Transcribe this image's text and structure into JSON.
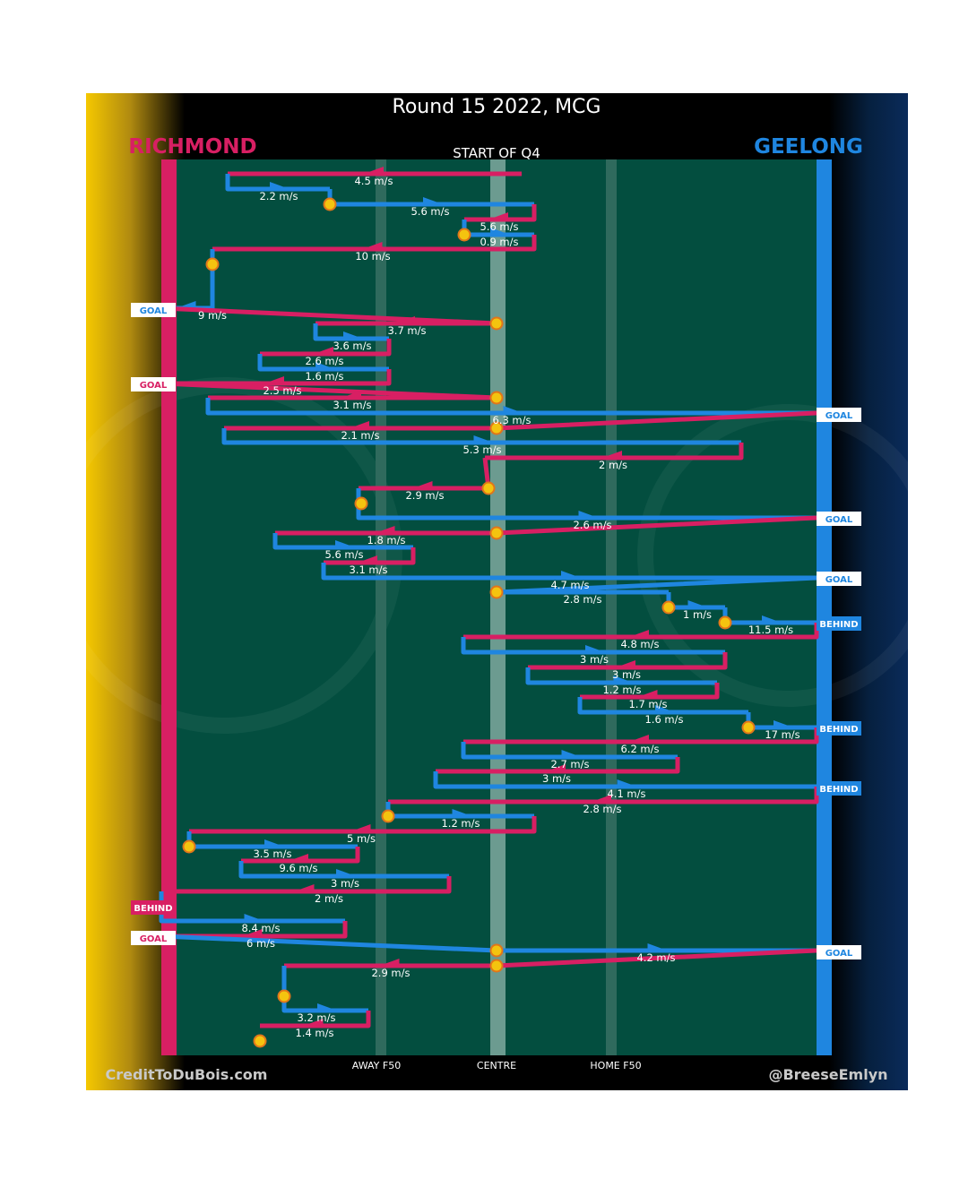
{
  "header": {
    "title": "Round 15 2022, MCG",
    "subtitle": "START OF Q4",
    "team_left": "RICHMOND",
    "team_right": "GEELONG"
  },
  "footer": {
    "credit_left": "CreditToDuBois.com",
    "credit_right": "@BreeseEmlyn"
  },
  "colors": {
    "richmond": "#d81f63",
    "geelong": "#1f86e0",
    "ground": "#034e3f",
    "ball": "#f4c40f"
  },
  "chart_data": {
    "type": "line",
    "title": "Round 15 2022, MCG",
    "subtitle": "START OF Q4",
    "x_axis": {
      "ticks": [
        "AWAY F50",
        "CENTRE",
        "HOME F50"
      ],
      "left_goal": "RICHMOND",
      "right_goal": "GEELONG"
    },
    "series": [
      {
        "team": "RICHMOND",
        "color": "#d81f63"
      },
      {
        "team": "GEELONG",
        "color": "#1f86e0"
      }
    ],
    "chains": [
      {
        "team": "R",
        "speed": "4.5 m/s"
      },
      {
        "team": "G",
        "speed": "2.2 m/s"
      },
      {
        "team": "G",
        "speed": "5.6 m/s"
      },
      {
        "team": "R",
        "speed": "5.6 m/s"
      },
      {
        "team": "G",
        "speed": "0.9 m/s"
      },
      {
        "team": "R",
        "speed": "10 m/s"
      },
      {
        "team": "G",
        "speed": "9 m/s",
        "result": "GOAL"
      },
      {
        "team": "R",
        "speed": "3.7 m/s"
      },
      {
        "team": "G",
        "speed": "3.6 m/s"
      },
      {
        "team": "R",
        "speed": "2.6 m/s"
      },
      {
        "team": "G",
        "speed": "1.6 m/s"
      },
      {
        "team": "R",
        "speed": "2.5 m/s",
        "result": "GOAL"
      },
      {
        "team": "R",
        "speed": "3.1 m/s"
      },
      {
        "team": "G",
        "speed": "6.3 m/s",
        "result": "GOAL"
      },
      {
        "team": "R",
        "speed": "2.1 m/s"
      },
      {
        "team": "G",
        "speed": "5.3 m/s"
      },
      {
        "team": "R",
        "speed": "2 m/s"
      },
      {
        "team": "R",
        "speed": "2.9 m/s"
      },
      {
        "team": "G",
        "speed": "2.6 m/s",
        "result": "GOAL"
      },
      {
        "team": "R",
        "speed": "1.8 m/s"
      },
      {
        "team": "G",
        "speed": "5.6 m/s"
      },
      {
        "team": "R",
        "speed": "3.1 m/s"
      },
      {
        "team": "G",
        "speed": "4.7 m/s",
        "result": "GOAL"
      },
      {
        "team": "G",
        "speed": "2.8 m/s"
      },
      {
        "team": "G",
        "speed": "1 m/s"
      },
      {
        "team": "G",
        "speed": "11.5 m/s",
        "result": "BEHIND"
      },
      {
        "team": "R",
        "speed": "4.8 m/s"
      },
      {
        "team": "G",
        "speed": "3 m/s"
      },
      {
        "team": "R",
        "speed": "3 m/s"
      },
      {
        "team": "G",
        "speed": "1.2 m/s"
      },
      {
        "team": "R",
        "speed": "1.7 m/s"
      },
      {
        "team": "G",
        "speed": "1.6 m/s"
      },
      {
        "team": "G",
        "speed": "17 m/s",
        "result": "BEHIND"
      },
      {
        "team": "R",
        "speed": "6.2 m/s"
      },
      {
        "team": "G",
        "speed": "2.7 m/s"
      },
      {
        "team": "R",
        "speed": "3 m/s"
      },
      {
        "team": "G",
        "speed": "4.1 m/s",
        "result": "BEHIND"
      },
      {
        "team": "R",
        "speed": "2.8 m/s"
      },
      {
        "team": "G",
        "speed": "1.2 m/s"
      },
      {
        "team": "R",
        "speed": "5 m/s"
      },
      {
        "team": "G",
        "speed": "3.5 m/s"
      },
      {
        "team": "R",
        "speed": "9.6 m/s"
      },
      {
        "team": "G",
        "speed": "3 m/s"
      },
      {
        "team": "R",
        "speed": "2 m/s",
        "result": "BEHIND"
      },
      {
        "team": "G",
        "speed": "8.4 m/s"
      },
      {
        "team": "R",
        "speed": "6 m/s",
        "result": "GOAL"
      },
      {
        "team": "G",
        "speed": "4.2 m/s",
        "result": "GOAL"
      },
      {
        "team": "R",
        "speed": "2.9 m/s"
      },
      {
        "team": "G",
        "speed": "3.2 m/s"
      },
      {
        "team": "R",
        "speed": "1.4 m/s"
      }
    ]
  }
}
